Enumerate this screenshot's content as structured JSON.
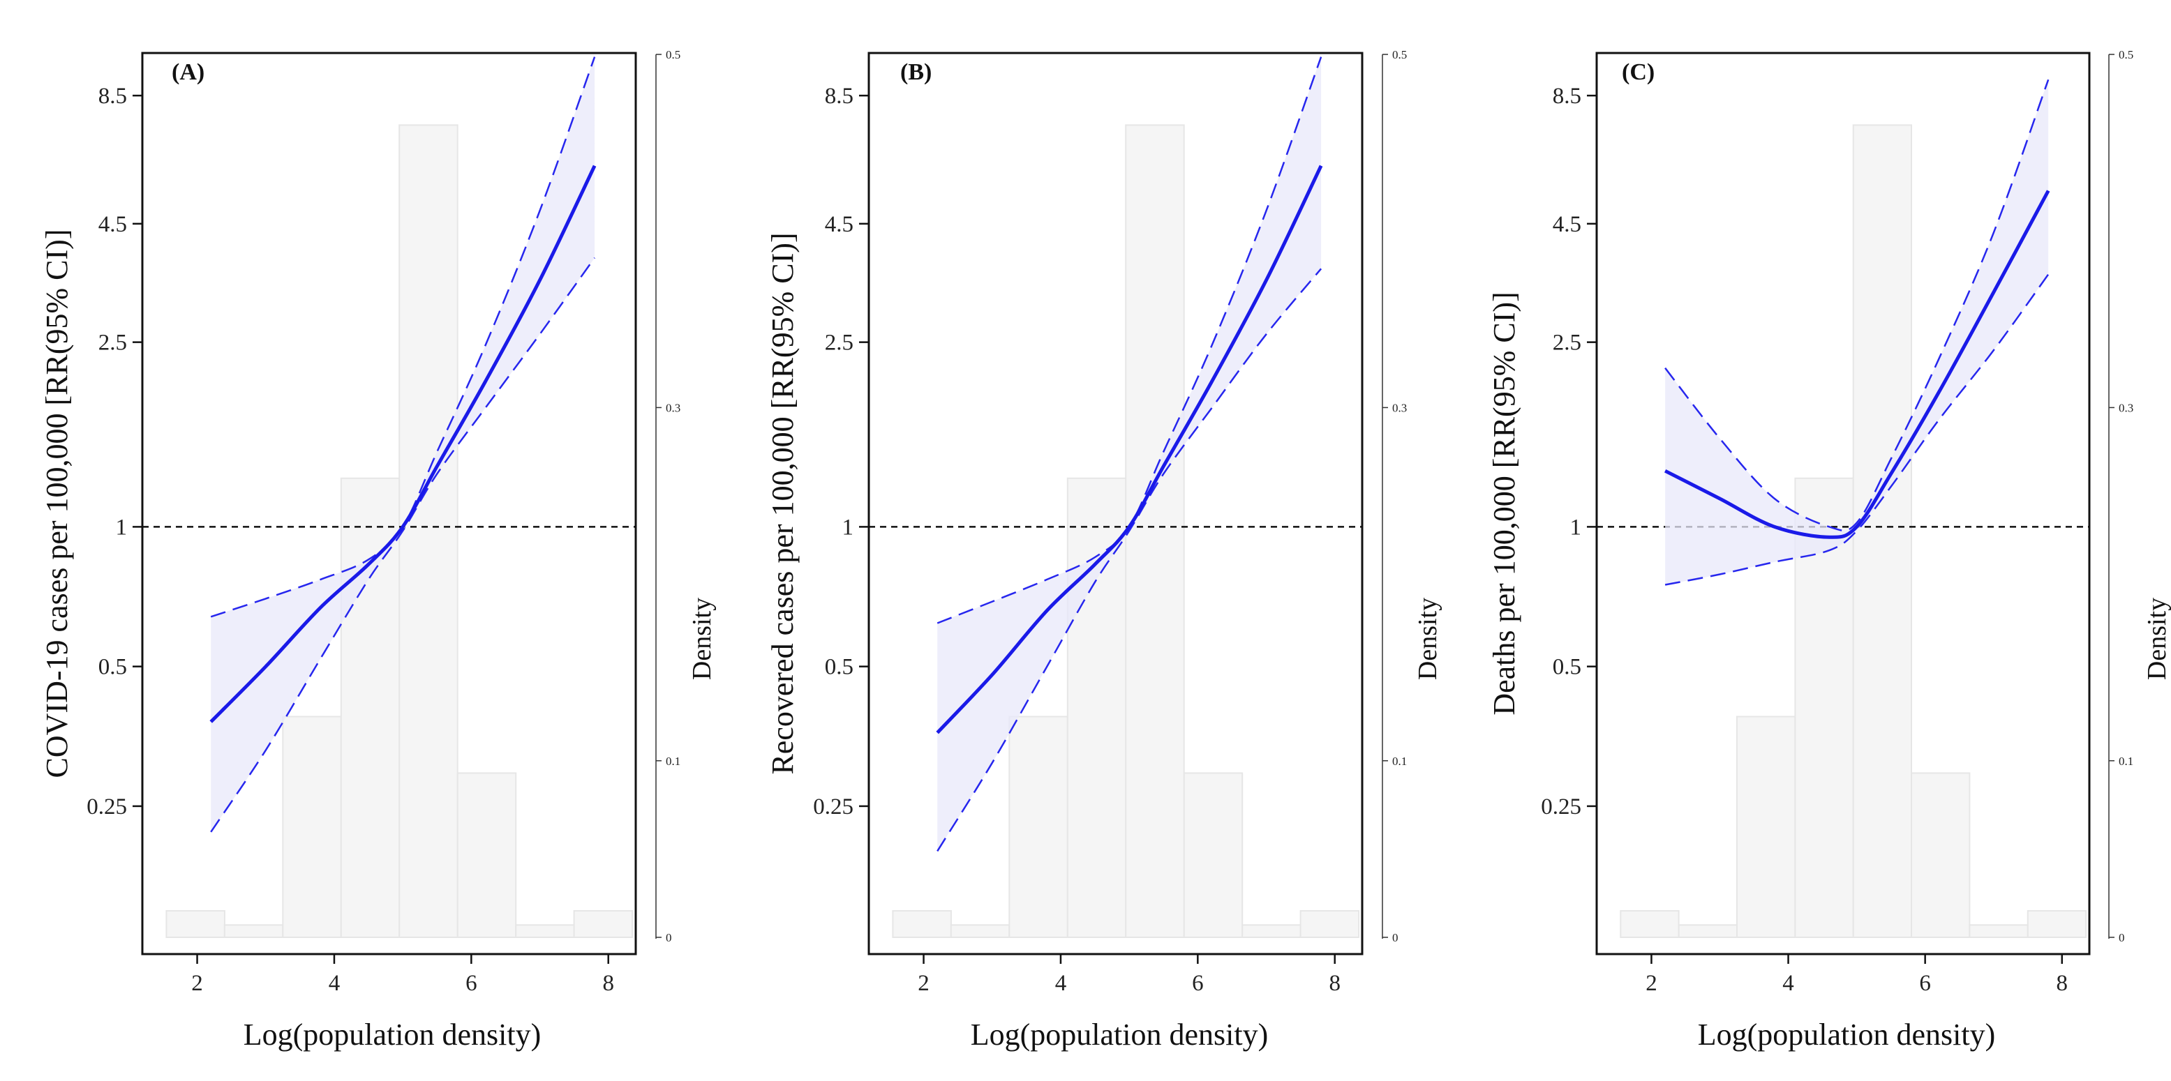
{
  "chart_data": [
    {
      "type": "line",
      "panel_label": "(A)",
      "title": "",
      "xlabel": "Log(population density)",
      "ylabel": "COVID-19 cases per 100,000 [RR(95% CI)]",
      "y2label": "Density",
      "xlim": [
        1.2,
        8.4
      ],
      "ylim_log": [
        0.12,
        10.5
      ],
      "y2lim": [
        -0.008,
        0.5
      ],
      "xticks": [
        "2",
        "4",
        "6",
        "8"
      ],
      "xtick_values": [
        2,
        4,
        6,
        8
      ],
      "yticks": [
        "0.25",
        "0.5",
        "1",
        "2.5",
        "4.5",
        "8.5"
      ],
      "ytick_values": [
        0.25,
        0.5,
        1,
        2.5,
        4.5,
        8.5
      ],
      "y2ticks": [
        "0",
        "0.1",
        "0.3",
        "0.5"
      ],
      "y2tick_values": [
        0,
        0.1,
        0.3,
        0.5
      ],
      "reference_line": 1,
      "histogram": {
        "bin_edges": [
          1.55,
          2.4,
          3.25,
          4.1,
          4.95,
          5.8,
          6.65,
          7.5,
          8.35
        ],
        "densities": [
          0.015,
          0.007,
          0.125,
          0.26,
          0.46,
          0.093,
          0.007,
          0.015
        ]
      },
      "series": [
        {
          "name": "RR",
          "x": [
            2.2,
            3.0,
            3.8,
            4.5,
            5.0,
            5.5,
            6.2,
            7.0,
            7.8
          ],
          "values": [
            0.38,
            0.5,
            0.67,
            0.83,
            1.0,
            1.35,
            2.05,
            3.4,
            6.0
          ]
        },
        {
          "name": "Lower 95% CI",
          "x": [
            2.2,
            3.0,
            3.8,
            4.5,
            5.0,
            5.5,
            6.2,
            7.0,
            7.8
          ],
          "values": [
            0.22,
            0.33,
            0.52,
            0.77,
            0.98,
            1.3,
            1.8,
            2.6,
            3.8
          ]
        },
        {
          "name": "Upper 95% CI",
          "x": [
            2.2,
            3.0,
            3.8,
            4.5,
            5.0,
            5.5,
            6.2,
            7.0,
            7.8
          ],
          "values": [
            0.64,
            0.7,
            0.77,
            0.85,
            1.0,
            1.45,
            2.45,
            4.8,
            10.3
          ]
        }
      ]
    },
    {
      "type": "line",
      "panel_label": "(B)",
      "title": "",
      "xlabel": "Log(population density)",
      "ylabel": "Recovered cases per 100,000 [RR(95% CI)]",
      "y2label": "Density",
      "xlim": [
        1.2,
        8.4
      ],
      "ylim_log": [
        0.12,
        10.5
      ],
      "y2lim": [
        -0.008,
        0.5
      ],
      "xticks": [
        "2",
        "4",
        "6",
        "8"
      ],
      "xtick_values": [
        2,
        4,
        6,
        8
      ],
      "yticks": [
        "0.25",
        "0.5",
        "1",
        "2.5",
        "4.5",
        "8.5"
      ],
      "ytick_values": [
        0.25,
        0.5,
        1,
        2.5,
        4.5,
        8.5
      ],
      "y2ticks": [
        "0",
        "0.1",
        "0.3",
        "0.5"
      ],
      "y2tick_values": [
        0,
        0.1,
        0.3,
        0.5
      ],
      "reference_line": 1,
      "histogram": {
        "bin_edges": [
          1.55,
          2.4,
          3.25,
          4.1,
          4.95,
          5.8,
          6.65,
          7.5,
          8.35
        ],
        "densities": [
          0.015,
          0.007,
          0.125,
          0.26,
          0.46,
          0.093,
          0.007,
          0.015
        ]
      },
      "series": [
        {
          "name": "RR",
          "x": [
            2.2,
            3.0,
            3.8,
            4.5,
            5.0,
            5.5,
            6.2,
            7.0,
            7.8
          ],
          "values": [
            0.36,
            0.48,
            0.66,
            0.83,
            1.0,
            1.35,
            2.05,
            3.4,
            6.0
          ]
        },
        {
          "name": "Lower 95% CI",
          "x": [
            2.2,
            3.0,
            3.8,
            4.5,
            5.0,
            5.5,
            6.2,
            7.0,
            7.8
          ],
          "values": [
            0.2,
            0.31,
            0.5,
            0.76,
            0.98,
            1.3,
            1.8,
            2.6,
            3.6
          ]
        },
        {
          "name": "Upper 95% CI",
          "x": [
            2.2,
            3.0,
            3.8,
            4.5,
            5.0,
            5.5,
            6.2,
            7.0,
            7.8
          ],
          "values": [
            0.62,
            0.69,
            0.77,
            0.86,
            1.0,
            1.45,
            2.45,
            4.8,
            10.3
          ]
        }
      ]
    },
    {
      "type": "line",
      "panel_label": "(C)",
      "title": "",
      "xlabel": "Log(population density)",
      "ylabel": "Deaths per 100,000 [RR(95% CI)]",
      "y2label": "Density",
      "xlim": [
        1.2,
        8.4
      ],
      "ylim_log": [
        0.12,
        10.5
      ],
      "y2lim": [
        -0.008,
        0.5
      ],
      "xticks": [
        "2",
        "4",
        "6",
        "8"
      ],
      "xtick_values": [
        2,
        4,
        6,
        8
      ],
      "yticks": [
        "0.25",
        "0.5",
        "1",
        "2.5",
        "4.5",
        "8.5"
      ],
      "ytick_values": [
        0.25,
        0.5,
        1,
        2.5,
        4.5,
        8.5
      ],
      "y2ticks": [
        "0",
        "0.1",
        "0.3",
        "0.5"
      ],
      "y2tick_values": [
        0,
        0.1,
        0.3,
        0.5
      ],
      "reference_line": 1,
      "histogram": {
        "bin_edges": [
          1.55,
          2.4,
          3.25,
          4.1,
          4.95,
          5.8,
          6.65,
          7.5,
          8.35
        ],
        "densities": [
          0.015,
          0.007,
          0.125,
          0.26,
          0.46,
          0.093,
          0.007,
          0.015
        ]
      },
      "series": [
        {
          "name": "RR",
          "x": [
            2.2,
            3.0,
            3.8,
            4.6,
            5.0,
            5.5,
            6.2,
            7.0,
            7.8
          ],
          "values": [
            1.32,
            1.15,
            1.0,
            0.95,
            1.0,
            1.3,
            1.95,
            3.2,
            5.3
          ]
        },
        {
          "name": "Lower 95% CI",
          "x": [
            2.2,
            3.0,
            3.8,
            4.6,
            5.0,
            5.5,
            6.2,
            7.0,
            7.8
          ],
          "values": [
            0.75,
            0.79,
            0.84,
            0.89,
            0.98,
            1.22,
            1.7,
            2.4,
            3.5
          ]
        },
        {
          "name": "Upper 95% CI",
          "x": [
            2.2,
            3.0,
            3.8,
            4.6,
            5.0,
            5.5,
            6.2,
            7.0,
            7.8
          ],
          "values": [
            2.2,
            1.55,
            1.15,
            1.0,
            1.02,
            1.4,
            2.3,
            4.3,
            9.2
          ]
        }
      ]
    }
  ]
}
